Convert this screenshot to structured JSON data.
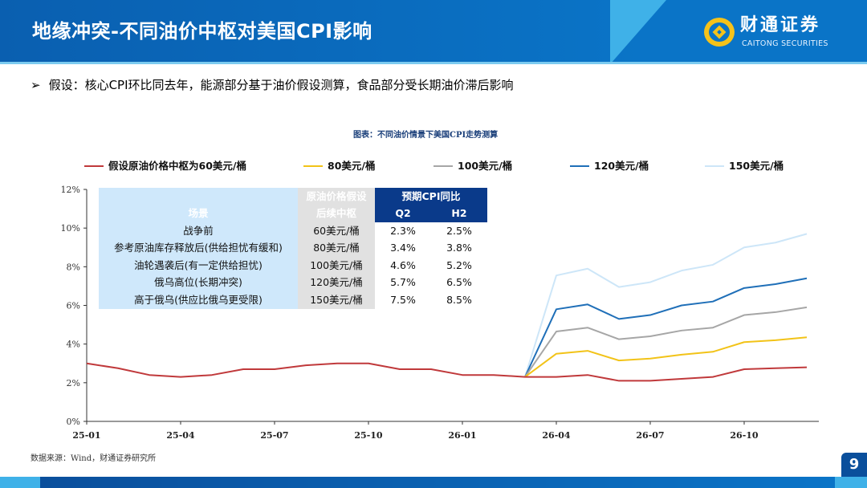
{
  "header": {
    "title": "地缘冲突-不同油价中枢对美国CPI影响",
    "brand_cn": "财通证券",
    "brand_en": "CAITONG SECURITIES",
    "logo": "caitong-logo"
  },
  "assumption": {
    "bullet": "➢",
    "text": "假设：核心CPI环比同去年，能源部分基于油价假设测算，食品部分受长期油价滞后影响"
  },
  "chart_title": "图表：不同油价情景下美国CPI走势测算",
  "table": {
    "headers_top": [
      "",
      "原油价格假设",
      "预期CPI同比"
    ],
    "headers_bottom": [
      "场景",
      "后续中枢",
      "Q2",
      "H2"
    ],
    "rows": [
      [
        "战争前",
        "60美元/桶",
        "2.3%",
        "2.5%"
      ],
      [
        "参考原油库存释放后(供给担忧有缓和)",
        "80美元/桶",
        "3.4%",
        "3.8%"
      ],
      [
        "油轮遇袭后(有一定供给担忧)",
        "100美元/桶",
        "4.6%",
        "5.2%"
      ],
      [
        "俄乌高位(长期冲突)",
        "120美元/桶",
        "5.7%",
        "6.5%"
      ],
      [
        "高于俄乌(供应比俄乌更受限)",
        "150美元/桶",
        "7.5%",
        "8.5%"
      ]
    ]
  },
  "chart_data": {
    "type": "line",
    "x": [
      "25-01",
      "25-02",
      "25-03",
      "25-04",
      "25-05",
      "25-06",
      "25-07",
      "25-08",
      "25-09",
      "25-10",
      "25-11",
      "25-12",
      "26-01",
      "26-02",
      "26-03",
      "26-04",
      "26-05",
      "26-06",
      "26-07",
      "26-08",
      "26-09",
      "26-10",
      "26-11",
      "26-12"
    ],
    "xticks": [
      "25-01",
      "25-04",
      "25-07",
      "25-10",
      "26-01",
      "26-04",
      "26-07",
      "26-10"
    ],
    "yticks": [
      "0%",
      "2%",
      "4%",
      "6%",
      "8%",
      "10%",
      "12%"
    ],
    "ylim": [
      0,
      12
    ],
    "legend_position": "top",
    "series": [
      {
        "name": "假设原油价格中枢为60美元/桶",
        "color": "#c0393b",
        "values": [
          3.0,
          2.75,
          2.4,
          2.3,
          2.4,
          2.7,
          2.7,
          2.9,
          3.0,
          3.0,
          2.7,
          2.7,
          2.4,
          2.4,
          2.3,
          2.3,
          2.4,
          2.1,
          2.1,
          2.2,
          2.3,
          2.7,
          2.75,
          2.8
        ]
      },
      {
        "name": "80美元/桶",
        "color": "#f2c318",
        "values": [
          null,
          null,
          null,
          null,
          null,
          null,
          null,
          null,
          null,
          null,
          null,
          null,
          null,
          null,
          2.3,
          3.5,
          3.65,
          3.15,
          3.25,
          3.45,
          3.6,
          4.1,
          4.2,
          4.35
        ]
      },
      {
        "name": "100美元/桶",
        "color": "#a6a6a6",
        "values": [
          null,
          null,
          null,
          null,
          null,
          null,
          null,
          null,
          null,
          null,
          null,
          null,
          null,
          null,
          2.3,
          4.65,
          4.85,
          4.25,
          4.4,
          4.7,
          4.85,
          5.5,
          5.65,
          5.9
        ]
      },
      {
        "name": "120美元/桶",
        "color": "#1f6fb8",
        "values": [
          null,
          null,
          null,
          null,
          null,
          null,
          null,
          null,
          null,
          null,
          null,
          null,
          null,
          null,
          2.3,
          5.8,
          6.05,
          5.3,
          5.5,
          6.0,
          6.2,
          6.9,
          7.1,
          7.4
        ]
      },
      {
        "name": "150美元/桶",
        "color": "#cde6f8",
        "values": [
          null,
          null,
          null,
          null,
          null,
          null,
          null,
          null,
          null,
          null,
          null,
          null,
          null,
          null,
          2.3,
          7.55,
          7.9,
          6.95,
          7.2,
          7.8,
          8.1,
          9.0,
          9.25,
          9.7
        ]
      }
    ]
  },
  "source": "数据来源：Wind，财通证券研究所",
  "page_number": "9"
}
